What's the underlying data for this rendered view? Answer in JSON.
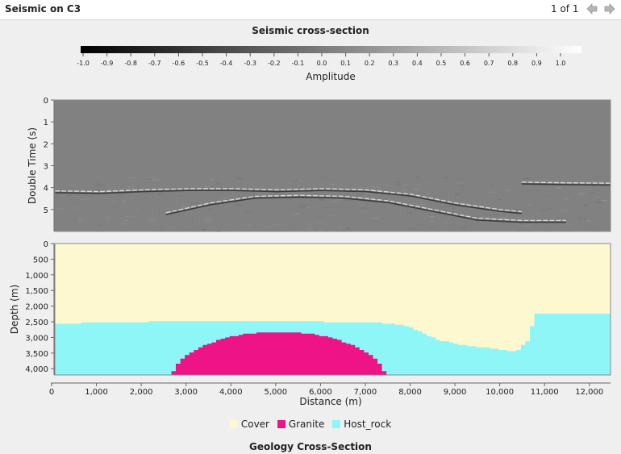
{
  "window": {
    "title": "Seismic on C3",
    "page_indicator": "1 of 1",
    "prev_icon": "arrow-left-icon",
    "next_icon": "arrow-right-icon"
  },
  "seismic": {
    "title": "Seismic cross-section"
  },
  "geology": {
    "title": "Geology Cross-Section"
  },
  "colors": {
    "cover": "#fdf8d0",
    "granite": "#ee1488",
    "host_rock": "#8ef6f6",
    "seismic_bg": "#818181"
  },
  "chart_data": [
    {
      "type": "colorbar",
      "title": "Amplitude",
      "ticks": [
        "-1.0",
        "-0.9",
        "-0.8",
        "-0.7",
        "-0.6",
        "-0.5",
        "-0.4",
        "-0.3",
        "-0.2",
        "-0.1",
        "0.0",
        "0.1",
        "0.2",
        "0.3",
        "0.4",
        "0.5",
        "0.6",
        "0.7",
        "0.8",
        "0.9",
        "1.0"
      ],
      "range": [
        -1.0,
        1.0
      ]
    },
    {
      "type": "heatmap",
      "title": "Seismic cross-section",
      "ylabel": "Double Time (s)",
      "yticks": [
        "0",
        "1",
        "2",
        "3",
        "4",
        "5"
      ],
      "ylim": [
        0,
        6.0
      ],
      "xlim": [
        0,
        12500
      ],
      "reflectors": [
        {
          "x": [
            0,
            1000,
            2000,
            3000,
            4000,
            5000,
            6000,
            7000,
            8000,
            9000,
            10000,
            10500
          ],
          "t": [
            4.15,
            4.18,
            4.1,
            4.05,
            4.05,
            4.1,
            4.05,
            4.1,
            4.3,
            4.7,
            5.0,
            5.1
          ]
        },
        {
          "x": [
            2500,
            3500,
            4500,
            5500,
            6500,
            7500,
            8500,
            9500,
            10500,
            11500
          ],
          "t": [
            5.15,
            4.7,
            4.4,
            4.35,
            4.4,
            4.6,
            5.0,
            5.4,
            5.5,
            5.5
          ]
        },
        {
          "x": [
            10500,
            11500,
            12500
          ],
          "t": [
            3.75,
            3.78,
            3.8
          ]
        }
      ]
    },
    {
      "type": "area",
      "title": "Geology Cross-Section",
      "xlabel": "Distance (m)",
      "ylabel": "Depth (m)",
      "xticks": [
        "0",
        "1,000",
        "2,000",
        "3,000",
        "4,000",
        "5,000",
        "6,000",
        "7,000",
        "8,000",
        "9,000",
        "10,000",
        "11,000",
        "12,000"
      ],
      "yticks": [
        "0",
        "500",
        "1,000",
        "1,500",
        "2,000",
        "2,500",
        "3,000",
        "3,500",
        "4,000"
      ],
      "xlim": [
        0,
        12400
      ],
      "ylim": [
        0,
        4200
      ],
      "units": {
        "cover_base": {
          "x": [
            0,
            1500,
            2500,
            4000,
            5000,
            6000,
            7000,
            7800,
            8500,
            9000,
            9500,
            10000,
            10250,
            10500,
            10650,
            10700,
            12400
          ],
          "depth": [
            2550,
            2520,
            2480,
            2480,
            2490,
            2500,
            2510,
            2620,
            3080,
            3220,
            3320,
            3400,
            3450,
            3100,
            2380,
            2220,
            2250
          ]
        },
        "granite": {
          "center_x": 5000,
          "radius_x": 2400,
          "top_depth": 2820,
          "base_depth": 4200
        }
      },
      "legend": [
        "Cover",
        "Granite",
        "Host_rock"
      ],
      "legend_position": "bottom"
    }
  ]
}
